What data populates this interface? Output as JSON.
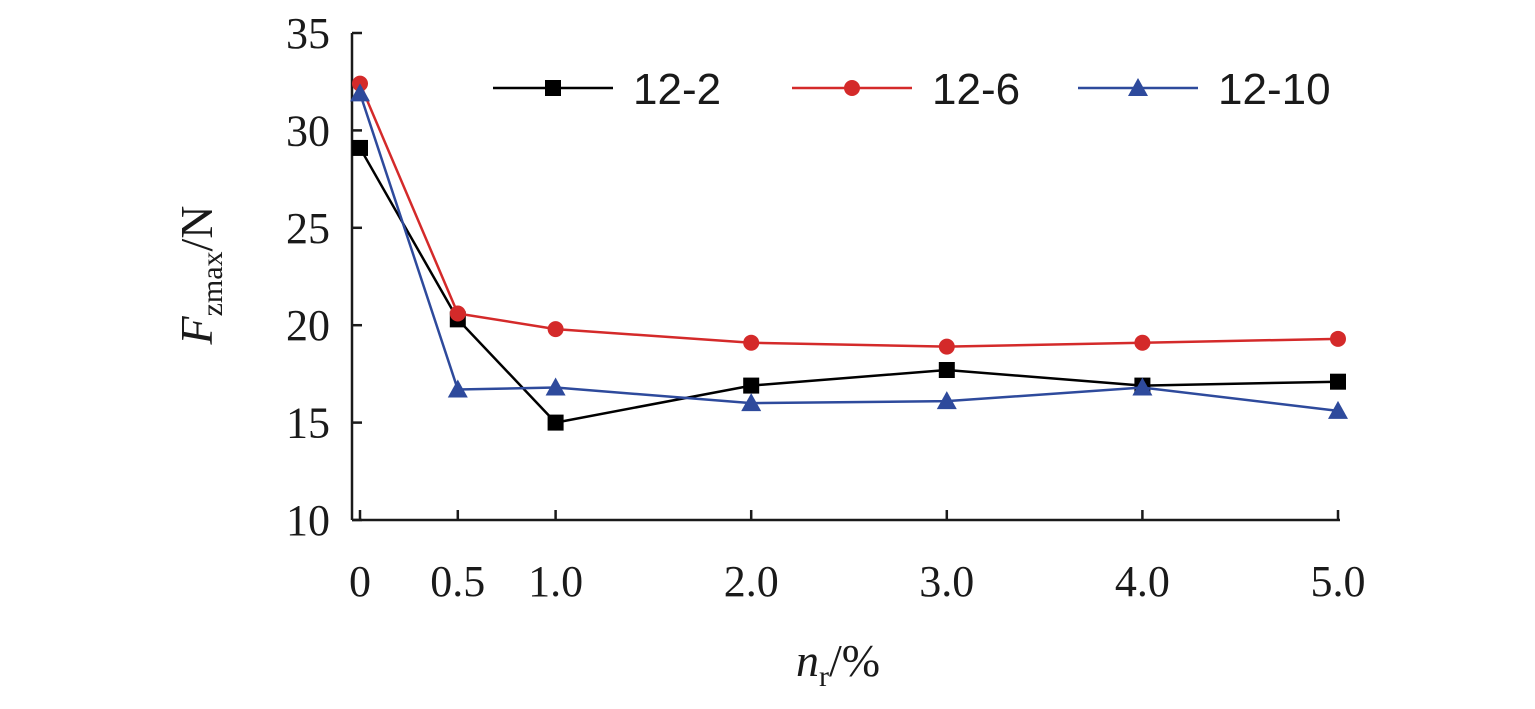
{
  "chart_data": {
    "type": "line",
    "x": [
      0,
      0.5,
      1.0,
      2.0,
      3.0,
      4.0,
      5.0
    ],
    "x_tick_labels": [
      "0",
      "0.5",
      "1.0",
      "2.0",
      "3.0",
      "4.0",
      "5.0"
    ],
    "xlabel": {
      "main": "n",
      "sub": "r",
      "tail": "/%"
    },
    "ylabel": {
      "main": "F",
      "sub": "zmax",
      "tail": "/N"
    },
    "ylim": [
      10,
      35
    ],
    "y_ticks": [
      10,
      15,
      20,
      25,
      30,
      35
    ],
    "y_tick_labels": [
      "10",
      "15",
      "20",
      "25",
      "30",
      "35"
    ],
    "grid": false,
    "legend_position": "top",
    "series": [
      {
        "name": "12-2",
        "color": "#000000",
        "marker": "square",
        "values": [
          29.1,
          20.3,
          15.0,
          16.9,
          17.7,
          16.9,
          17.1
        ]
      },
      {
        "name": "12-6",
        "color": "#d42a2a",
        "marker": "circle",
        "values": [
          32.4,
          20.6,
          19.8,
          19.1,
          18.9,
          19.1,
          19.3
        ]
      },
      {
        "name": "12-10",
        "color": "#2e4a9c",
        "marker": "triangle",
        "values": [
          31.9,
          16.7,
          16.8,
          16.0,
          16.1,
          16.8,
          15.6
        ]
      }
    ]
  }
}
